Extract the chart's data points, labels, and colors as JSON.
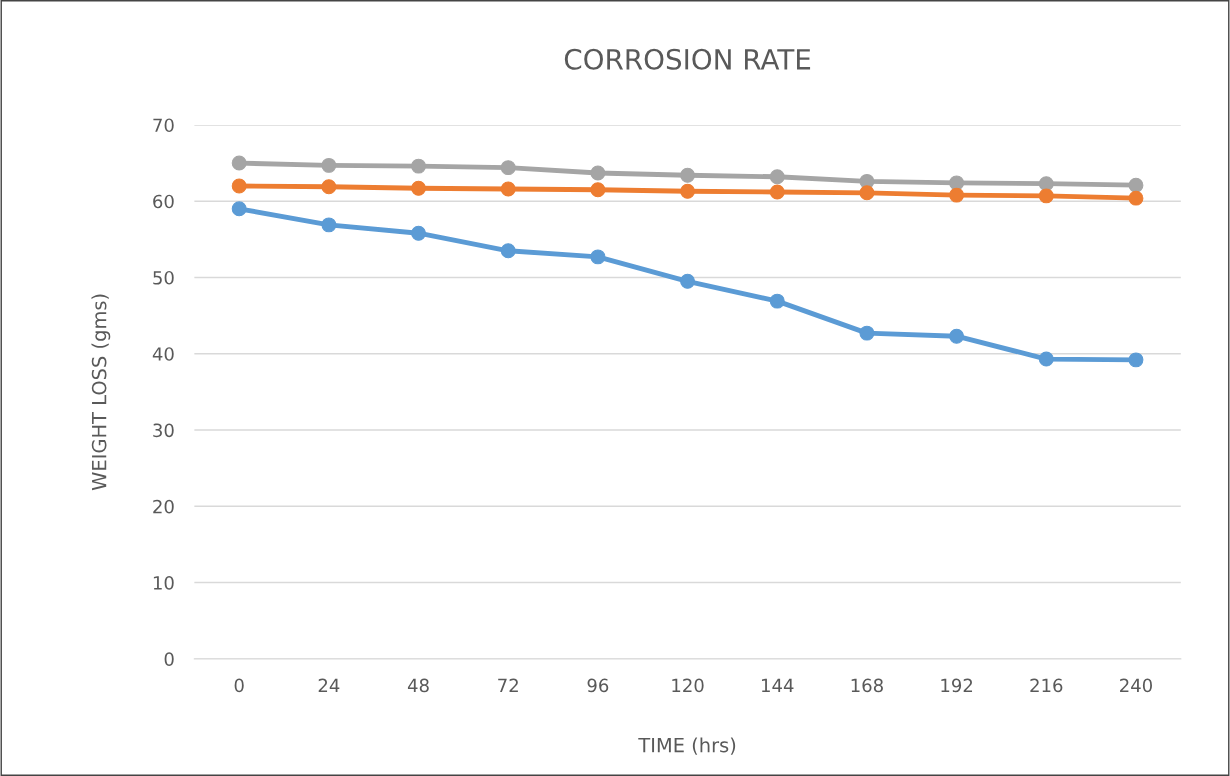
{
  "chart_data": {
    "type": "line",
    "title": "CORROSION RATE",
    "xlabel": "TIME (hrs)",
    "ylabel": "WEIGHT LOSS (gms)",
    "categories": [
      "0",
      "24",
      "48",
      "72",
      "96",
      "120",
      "144",
      "168",
      "192",
      "216",
      "240"
    ],
    "series": [
      {
        "color": "#a5a5a5",
        "values": [
          65.0,
          64.7,
          64.6,
          64.4,
          63.7,
          63.4,
          63.2,
          62.6,
          62.4,
          62.3,
          62.1
        ]
      },
      {
        "color": "#ed7d31",
        "values": [
          62.0,
          61.9,
          61.7,
          61.6,
          61.5,
          61.3,
          61.2,
          61.1,
          60.8,
          60.7,
          60.4
        ]
      },
      {
        "color": "#5b9bd5",
        "values": [
          59.0,
          56.9,
          55.8,
          53.5,
          52.7,
          49.5,
          46.9,
          42.7,
          42.3,
          39.3,
          39.2
        ]
      }
    ],
    "ylim": [
      0,
      70
    ],
    "yticks": [
      0,
      10,
      20,
      30,
      40,
      50,
      60,
      70
    ],
    "grid": "y",
    "marker": "circle",
    "line_style": "solid",
    "legend": false
  }
}
